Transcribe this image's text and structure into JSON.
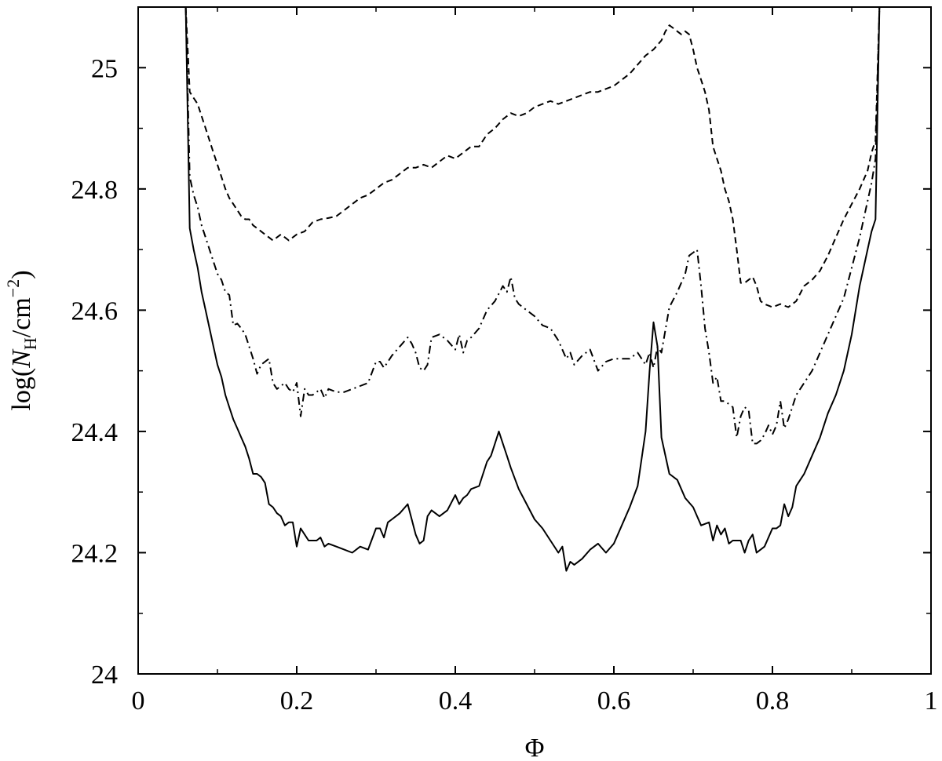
{
  "chart_data": {
    "type": "line",
    "title": "",
    "xlabel": "Φ",
    "ylabel_parts": {
      "prefix": "log(",
      "var": "N",
      "sub": "H",
      "unit": "/cm",
      "sup": "−2",
      "suffix": ")"
    },
    "xlim": [
      0,
      1
    ],
    "ylim": [
      24,
      25.1
    ],
    "xticks": [
      0,
      0.2,
      0.4,
      0.6,
      0.8,
      1
    ],
    "xtick_labels": [
      "0",
      "0.2",
      "0.4",
      "0.6",
      "0.8",
      "1"
    ],
    "yticks": [
      24,
      24.2,
      24.4,
      24.6,
      24.8,
      25
    ],
    "ytick_labels": [
      "24",
      "24.2",
      "24.4",
      "24.6",
      "24.8",
      "25"
    ],
    "grid": false,
    "legend": "none",
    "series": [
      {
        "style": "dashed",
        "x": [
          0.06,
          0.065,
          0.07,
          0.075,
          0.08,
          0.085,
          0.09,
          0.095,
          0.1,
          0.105,
          0.11,
          0.115,
          0.12,
          0.125,
          0.13,
          0.135,
          0.14,
          0.145,
          0.15,
          0.155,
          0.16,
          0.165,
          0.17,
          0.175,
          0.18,
          0.185,
          0.19,
          0.195,
          0.2,
          0.21,
          0.22,
          0.23,
          0.24,
          0.25,
          0.26,
          0.27,
          0.28,
          0.29,
          0.3,
          0.31,
          0.32,
          0.33,
          0.34,
          0.35,
          0.36,
          0.37,
          0.38,
          0.39,
          0.4,
          0.41,
          0.42,
          0.43,
          0.44,
          0.45,
          0.46,
          0.47,
          0.48,
          0.49,
          0.5,
          0.51,
          0.52,
          0.53,
          0.54,
          0.55,
          0.56,
          0.57,
          0.58,
          0.59,
          0.6,
          0.61,
          0.62,
          0.63,
          0.64,
          0.65,
          0.66,
          0.665,
          0.67,
          0.675,
          0.68,
          0.685,
          0.69,
          0.695,
          0.7,
          0.705,
          0.71,
          0.715,
          0.72,
          0.725,
          0.73,
          0.735,
          0.74,
          0.745,
          0.75,
          0.755,
          0.76,
          0.765,
          0.77,
          0.775,
          0.78,
          0.785,
          0.79,
          0.8,
          0.81,
          0.82,
          0.83,
          0.84,
          0.85,
          0.86,
          0.87,
          0.88,
          0.89,
          0.9,
          0.91,
          0.92,
          0.925,
          0.93,
          0.935
        ],
        "y": [
          25.1,
          24.96,
          24.95,
          24.94,
          24.92,
          24.9,
          24.88,
          24.86,
          24.84,
          24.82,
          24.8,
          24.785,
          24.775,
          24.765,
          24.755,
          24.75,
          24.75,
          24.74,
          24.735,
          24.73,
          24.725,
          24.72,
          24.715,
          24.72,
          24.725,
          24.72,
          24.715,
          24.72,
          24.725,
          24.73,
          24.745,
          24.75,
          24.752,
          24.755,
          24.765,
          24.775,
          24.785,
          24.79,
          24.8,
          24.81,
          24.815,
          24.825,
          24.835,
          24.835,
          24.84,
          24.835,
          24.845,
          24.855,
          24.85,
          24.86,
          24.87,
          24.87,
          24.89,
          24.9,
          24.915,
          24.925,
          24.92,
          24.925,
          24.935,
          24.94,
          24.945,
          24.94,
          24.945,
          24.95,
          24.955,
          24.96,
          24.96,
          24.965,
          24.97,
          24.98,
          24.99,
          25.005,
          25.02,
          25.03,
          25.045,
          25.06,
          25.07,
          25.065,
          25.06,
          25.055,
          25.06,
          25.055,
          25.03,
          25.0,
          24.98,
          24.96,
          24.93,
          24.87,
          24.85,
          24.83,
          24.8,
          24.78,
          24.75,
          24.7,
          24.645,
          24.645,
          24.65,
          24.655,
          24.64,
          24.615,
          24.61,
          24.605,
          24.61,
          24.605,
          24.615,
          24.64,
          24.65,
          24.665,
          24.69,
          24.72,
          24.75,
          24.775,
          24.8,
          24.83,
          24.86,
          24.88,
          25.1
        ]
      },
      {
        "style": "dash-dot",
        "x": [
          0.06,
          0.065,
          0.07,
          0.075,
          0.08,
          0.085,
          0.09,
          0.095,
          0.1,
          0.105,
          0.11,
          0.115,
          0.12,
          0.125,
          0.13,
          0.135,
          0.14,
          0.145,
          0.15,
          0.155,
          0.16,
          0.165,
          0.17,
          0.175,
          0.18,
          0.185,
          0.19,
          0.195,
          0.2,
          0.205,
          0.21,
          0.215,
          0.22,
          0.225,
          0.23,
          0.235,
          0.24,
          0.25,
          0.26,
          0.27,
          0.28,
          0.29,
          0.3,
          0.305,
          0.31,
          0.32,
          0.33,
          0.34,
          0.345,
          0.35,
          0.355,
          0.36,
          0.365,
          0.37,
          0.38,
          0.39,
          0.4,
          0.405,
          0.41,
          0.415,
          0.42,
          0.43,
          0.44,
          0.45,
          0.46,
          0.465,
          0.47,
          0.475,
          0.48,
          0.49,
          0.5,
          0.51,
          0.52,
          0.53,
          0.54,
          0.545,
          0.55,
          0.56,
          0.57,
          0.58,
          0.59,
          0.6,
          0.61,
          0.62,
          0.63,
          0.64,
          0.645,
          0.65,
          0.655,
          0.66,
          0.67,
          0.68,
          0.69,
          0.695,
          0.7,
          0.705,
          0.71,
          0.715,
          0.72,
          0.725,
          0.73,
          0.735,
          0.74,
          0.745,
          0.75,
          0.755,
          0.76,
          0.765,
          0.77,
          0.775,
          0.78,
          0.785,
          0.79,
          0.795,
          0.8,
          0.805,
          0.81,
          0.815,
          0.82,
          0.825,
          0.83,
          0.84,
          0.85,
          0.86,
          0.87,
          0.88,
          0.89,
          0.9,
          0.91,
          0.92,
          0.925,
          0.93,
          0.935
        ],
        "y": [
          25.1,
          24.82,
          24.79,
          24.77,
          24.74,
          24.72,
          24.7,
          24.68,
          24.66,
          24.65,
          24.63,
          24.625,
          24.575,
          24.578,
          24.57,
          24.56,
          24.54,
          24.52,
          24.495,
          24.51,
          24.515,
          24.52,
          24.48,
          24.47,
          24.475,
          24.48,
          24.47,
          24.465,
          24.48,
          24.425,
          24.47,
          24.46,
          24.46,
          24.465,
          24.47,
          24.455,
          24.47,
          24.465,
          24.465,
          24.47,
          24.475,
          24.48,
          24.515,
          24.515,
          24.505,
          24.525,
          24.54,
          24.555,
          24.545,
          24.53,
          24.505,
          24.5,
          24.51,
          24.555,
          24.56,
          24.55,
          24.535,
          24.56,
          24.53,
          24.55,
          24.555,
          24.57,
          24.6,
          24.615,
          24.64,
          24.63,
          24.655,
          24.62,
          24.61,
          24.6,
          24.59,
          24.575,
          24.57,
          24.55,
          24.52,
          24.53,
          24.51,
          24.525,
          24.535,
          24.5,
          24.515,
          24.52,
          24.52,
          24.52,
          24.53,
          24.51,
          24.53,
          24.505,
          24.54,
          24.53,
          24.605,
          24.63,
          24.66,
          24.69,
          24.695,
          24.7,
          24.64,
          24.57,
          24.53,
          24.48,
          24.49,
          24.45,
          24.45,
          24.445,
          24.44,
          24.39,
          24.425,
          24.44,
          24.435,
          24.38,
          24.38,
          24.385,
          24.395,
          24.41,
          24.395,
          24.41,
          24.45,
          24.405,
          24.42,
          24.44,
          24.46,
          24.48,
          24.5,
          24.53,
          24.56,
          24.59,
          24.62,
          24.67,
          24.72,
          24.78,
          24.81,
          24.85,
          25.1
        ]
      },
      {
        "style": "solid",
        "x": [
          0.06,
          0.065,
          0.07,
          0.075,
          0.08,
          0.085,
          0.09,
          0.095,
          0.1,
          0.105,
          0.11,
          0.115,
          0.12,
          0.125,
          0.13,
          0.135,
          0.14,
          0.145,
          0.15,
          0.155,
          0.16,
          0.165,
          0.17,
          0.175,
          0.18,
          0.185,
          0.19,
          0.195,
          0.2,
          0.205,
          0.21,
          0.215,
          0.22,
          0.225,
          0.23,
          0.235,
          0.24,
          0.25,
          0.26,
          0.27,
          0.28,
          0.29,
          0.3,
          0.305,
          0.31,
          0.315,
          0.32,
          0.33,
          0.34,
          0.345,
          0.35,
          0.355,
          0.36,
          0.365,
          0.37,
          0.38,
          0.39,
          0.4,
          0.405,
          0.41,
          0.415,
          0.42,
          0.43,
          0.44,
          0.445,
          0.45,
          0.455,
          0.46,
          0.465,
          0.47,
          0.48,
          0.49,
          0.5,
          0.51,
          0.52,
          0.53,
          0.535,
          0.54,
          0.545,
          0.55,
          0.56,
          0.57,
          0.58,
          0.59,
          0.6,
          0.61,
          0.62,
          0.63,
          0.64,
          0.645,
          0.65,
          0.655,
          0.66,
          0.67,
          0.68,
          0.69,
          0.7,
          0.71,
          0.72,
          0.725,
          0.73,
          0.735,
          0.74,
          0.745,
          0.75,
          0.755,
          0.76,
          0.765,
          0.77,
          0.775,
          0.78,
          0.79,
          0.8,
          0.805,
          0.81,
          0.815,
          0.82,
          0.825,
          0.83,
          0.84,
          0.85,
          0.86,
          0.87,
          0.88,
          0.89,
          0.9,
          0.91,
          0.92,
          0.925,
          0.93,
          0.935
        ],
        "y": [
          25.1,
          24.735,
          24.7,
          24.67,
          24.63,
          24.6,
          24.57,
          24.54,
          24.51,
          24.49,
          24.46,
          24.44,
          24.42,
          24.405,
          24.39,
          24.375,
          24.355,
          24.33,
          24.33,
          24.325,
          24.315,
          24.28,
          24.275,
          24.265,
          24.26,
          24.245,
          24.25,
          24.25,
          24.21,
          24.24,
          24.23,
          24.22,
          24.22,
          24.22,
          24.225,
          24.21,
          24.215,
          24.21,
          24.205,
          24.2,
          24.21,
          24.205,
          24.24,
          24.24,
          24.225,
          24.25,
          24.255,
          24.265,
          24.28,
          24.255,
          24.23,
          24.215,
          24.22,
          24.26,
          24.27,
          24.26,
          24.27,
          24.295,
          24.28,
          24.29,
          24.295,
          24.305,
          24.31,
          24.35,
          24.36,
          24.38,
          24.4,
          24.38,
          24.36,
          24.34,
          24.305,
          24.28,
          24.255,
          24.24,
          24.22,
          24.2,
          24.21,
          24.17,
          24.185,
          24.18,
          24.19,
          24.205,
          24.215,
          24.2,
          24.215,
          24.245,
          24.275,
          24.31,
          24.4,
          24.5,
          24.58,
          24.54,
          24.39,
          24.33,
          24.32,
          24.29,
          24.275,
          24.245,
          24.25,
          24.22,
          24.245,
          24.23,
          24.24,
          24.215,
          24.22,
          24.22,
          24.22,
          24.2,
          24.22,
          24.23,
          24.2,
          24.21,
          24.24,
          24.24,
          24.245,
          24.28,
          24.26,
          24.275,
          24.31,
          24.33,
          24.36,
          24.39,
          24.43,
          24.46,
          24.5,
          24.56,
          24.64,
          24.7,
          24.73,
          24.75,
          25.1
        ]
      }
    ]
  }
}
